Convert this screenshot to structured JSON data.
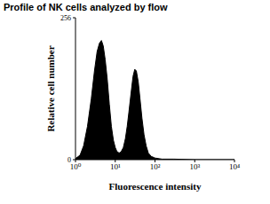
{
  "chart_data": {
    "type": "area",
    "title": "Profile of NK cells analyzed by flow",
    "x_label": "Fluorescence intensity",
    "y_label": "Relative cell number",
    "x": [
      1.0,
      1.3,
      1.6,
      2.0,
      2.5,
      3.0,
      3.5,
      4.0,
      4.5,
      5.0,
      5.6,
      6.3,
      7.1,
      8.0,
      9.0,
      10,
      11,
      12.5,
      14,
      16,
      18,
      20,
      22,
      25,
      28,
      31,
      34,
      38,
      42,
      47,
      53,
      60,
      68,
      80,
      100,
      150,
      300,
      1000,
      10000
    ],
    "values": [
      2,
      8,
      25,
      60,
      110,
      160,
      195,
      210,
      215,
      205,
      180,
      145,
      100,
      60,
      35,
      22,
      15,
      12,
      14,
      22,
      38,
      60,
      85,
      120,
      150,
      163,
      160,
      140,
      110,
      75,
      45,
      25,
      12,
      6,
      3,
      1,
      1,
      0,
      0
    ],
    "color": "#000000",
    "log": "x",
    "xlim": [
      1,
      10000
    ],
    "xticks": [
      {
        "value": 1,
        "label": "10⁰"
      },
      {
        "value": 10,
        "label": "10¹"
      },
      {
        "value": 100,
        "label": "10²"
      },
      {
        "value": 1000,
        "label": "10³"
      },
      {
        "value": 10000,
        "label": "10⁴"
      }
    ],
    "ylim": [
      0,
      256
    ],
    "yticks": [
      0,
      256
    ]
  }
}
